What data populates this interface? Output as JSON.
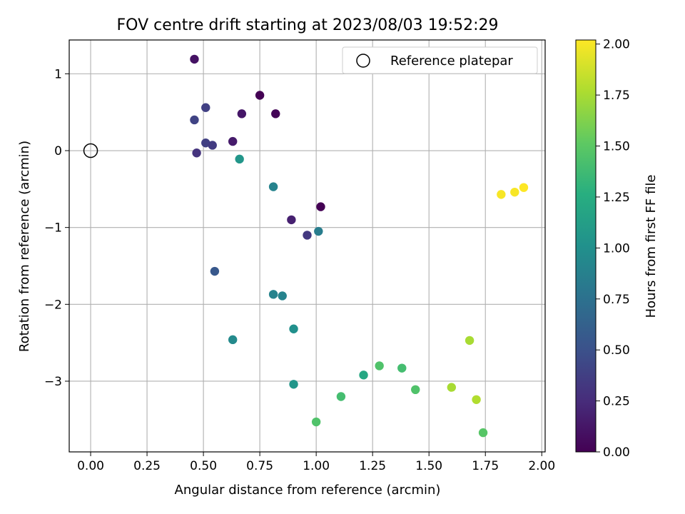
{
  "chart_data": {
    "type": "scatter",
    "title": "FOV centre drift starting at 2023/08/03 19:52:29",
    "xlabel": "Angular distance from reference (arcmin)",
    "ylabel": "Rotation from reference (arcmin)",
    "xlim": [
      -0.095,
      2.015
    ],
    "ylim": [
      -3.92,
      1.44
    ],
    "xticks": [
      "0.00",
      "0.25",
      "0.50",
      "0.75",
      "1.00",
      "1.25",
      "1.50",
      "1.75",
      "2.00"
    ],
    "xtick_values": [
      0,
      0.25,
      0.5,
      0.75,
      1.0,
      1.25,
      1.5,
      1.75,
      2.0
    ],
    "yticks": [
      "1",
      "0",
      "−1",
      "−2",
      "−3"
    ],
    "ytick_values": [
      1,
      0,
      -1,
      -2,
      -3
    ],
    "grid": true,
    "legend": {
      "position": "top-right",
      "entries": [
        "Reference platepar"
      ]
    },
    "reference_point": {
      "x": 0.0,
      "y": 0.0
    },
    "colorbar": {
      "label": "Hours from first FF file",
      "range": [
        0,
        2.02
      ],
      "ticks": [
        "0.00",
        "0.25",
        "0.50",
        "0.75",
        "1.00",
        "1.25",
        "1.50",
        "1.75",
        "2.00"
      ],
      "tick_values": [
        0,
        0.25,
        0.5,
        0.75,
        1.0,
        1.25,
        1.5,
        1.75,
        2.0
      ],
      "colormap": "viridis"
    },
    "points": [
      {
        "x": 0.46,
        "y": 1.19,
        "c": 0.1
      },
      {
        "x": 0.75,
        "y": 0.72,
        "c": 0.0
      },
      {
        "x": 0.82,
        "y": 0.48,
        "c": 0.02
      },
      {
        "x": 0.67,
        "y": 0.48,
        "c": 0.12
      },
      {
        "x": 0.51,
        "y": 0.56,
        "c": 0.38
      },
      {
        "x": 0.46,
        "y": 0.4,
        "c": 0.4
      },
      {
        "x": 0.63,
        "y": 0.12,
        "c": 0.15
      },
      {
        "x": 0.51,
        "y": 0.1,
        "c": 0.38
      },
      {
        "x": 0.54,
        "y": 0.07,
        "c": 0.35
      },
      {
        "x": 0.47,
        "y": -0.03,
        "c": 0.3
      },
      {
        "x": 0.66,
        "y": -0.11,
        "c": 1.05
      },
      {
        "x": 0.81,
        "y": -0.47,
        "c": 0.9
      },
      {
        "x": 1.02,
        "y": -0.73,
        "c": 0.0
      },
      {
        "x": 0.89,
        "y": -0.9,
        "c": 0.18
      },
      {
        "x": 0.96,
        "y": -1.1,
        "c": 0.33
      },
      {
        "x": 1.01,
        "y": -1.05,
        "c": 0.85
      },
      {
        "x": 0.55,
        "y": -1.57,
        "c": 0.55
      },
      {
        "x": 0.81,
        "y": -1.87,
        "c": 0.9
      },
      {
        "x": 0.85,
        "y": -1.89,
        "c": 0.9
      },
      {
        "x": 0.9,
        "y": -2.32,
        "c": 1.0
      },
      {
        "x": 0.63,
        "y": -2.46,
        "c": 0.95
      },
      {
        "x": 0.9,
        "y": -3.04,
        "c": 1.05
      },
      {
        "x": 1.0,
        "y": -3.53,
        "c": 1.45
      },
      {
        "x": 1.11,
        "y": -3.2,
        "c": 1.4
      },
      {
        "x": 1.21,
        "y": -2.92,
        "c": 1.2
      },
      {
        "x": 1.28,
        "y": -2.8,
        "c": 1.45
      },
      {
        "x": 1.38,
        "y": -2.83,
        "c": 1.4
      },
      {
        "x": 1.44,
        "y": -3.11,
        "c": 1.45
      },
      {
        "x": 1.6,
        "y": -3.08,
        "c": 1.75
      },
      {
        "x": 1.68,
        "y": -2.47,
        "c": 1.75
      },
      {
        "x": 1.71,
        "y": -3.24,
        "c": 1.78
      },
      {
        "x": 1.74,
        "y": -3.67,
        "c": 1.48
      },
      {
        "x": 1.82,
        "y": -0.57,
        "c": 2.0
      },
      {
        "x": 1.88,
        "y": -0.54,
        "c": 2.0
      },
      {
        "x": 1.92,
        "y": -0.48,
        "c": 2.02
      }
    ]
  }
}
